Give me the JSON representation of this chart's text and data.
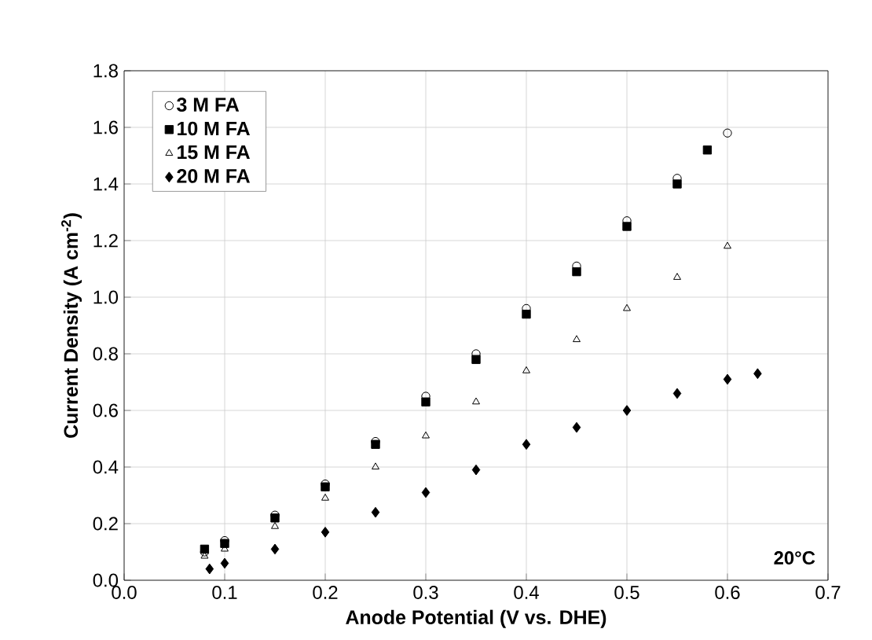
{
  "chart_data": {
    "type": "scatter",
    "xlabel": "Anode Potential (V vs. DHE)",
    "ylabel": "Current Density (A cm$^{-2}$)",
    "xlim": [
      0,
      0.7
    ],
    "xticks": [
      {
        "value": 0,
        "label": "0.0"
      },
      0.1,
      0.2,
      0.3,
      0.4,
      0.5,
      0.6,
      0.7
    ],
    "ylim": [
      0,
      1.8
    ],
    "yticks": [
      {
        "value": 0,
        "label": "0.0"
      },
      0.2,
      0.4,
      0.6,
      0.8,
      {
        "value": 1,
        "label": "1.0"
      },
      1.2,
      1.4,
      1.6,
      1.8
    ],
    "grid": true,
    "legend": "top left",
    "annotations": [
      "20°C"
    ],
    "series": [
      {
        "name": "3 M FA",
        "color": "#000000",
        "marker": "circle",
        "x": [
          0.08,
          0.1,
          0.15,
          0.2,
          0.25,
          0.3,
          0.35,
          0.4,
          0.45,
          0.5,
          0.55,
          0.6
        ],
        "values": [
          0.1,
          0.14,
          0.23,
          0.34,
          0.49,
          0.65,
          0.8,
          0.96,
          1.11,
          1.27,
          1.42,
          1.58
        ]
      },
      {
        "name": "10 M FA",
        "color": "#000000",
        "marker": "square",
        "x": [
          0.08,
          0.1,
          0.15,
          0.2,
          0.25,
          0.3,
          0.35,
          0.4,
          0.45,
          0.5,
          0.55,
          0.58
        ],
        "values": [
          0.11,
          0.13,
          0.22,
          0.33,
          0.48,
          0.63,
          0.78,
          0.94,
          1.09,
          1.25,
          1.4,
          1.52
        ]
      },
      {
        "name": "15 M FA",
        "color": "#000000",
        "marker": "triangle",
        "x": [
          0.08,
          0.1,
          0.15,
          0.2,
          0.25,
          0.3,
          0.35,
          0.4,
          0.45,
          0.5,
          0.55,
          0.6
        ],
        "values": [
          0.085,
          0.11,
          0.19,
          0.29,
          0.4,
          0.51,
          0.63,
          0.74,
          0.85,
          0.96,
          1.07,
          1.18
        ]
      },
      {
        "name": "20 M FA",
        "color": "#000000",
        "marker": "diamond",
        "x": [
          0.085,
          0.1,
          0.15,
          0.2,
          0.25,
          0.3,
          0.35,
          0.4,
          0.45,
          0.5,
          0.55,
          0.6,
          0.63
        ],
        "values": [
          0.04,
          0.06,
          0.11,
          0.17,
          0.24,
          0.31,
          0.39,
          0.48,
          0.54,
          0.6,
          0.66,
          0.71,
          0.73
        ]
      }
    ]
  }
}
